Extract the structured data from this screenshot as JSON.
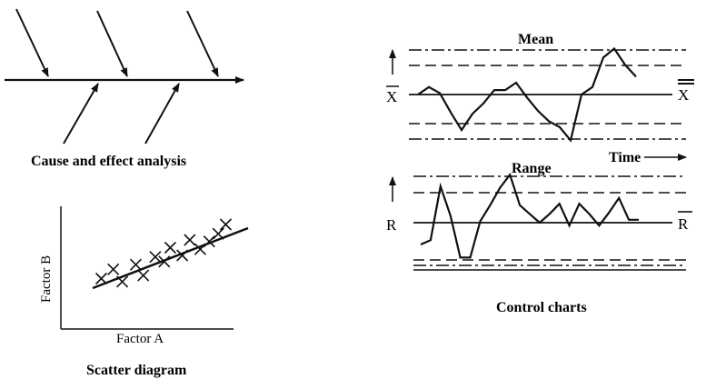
{
  "fishbone": {
    "caption": "Cause and effect analysis"
  },
  "scatter": {
    "xlabel": "Factor A",
    "ylabel": "Factor B",
    "caption": "Scatter diagram"
  },
  "control": {
    "caption": "Control charts",
    "mean_title": "Mean",
    "range_title": "Range",
    "time_label": "Time",
    "mean_symbol": "X",
    "mean_center_symbol": "X",
    "range_symbol": "R",
    "range_center_symbol": "R"
  },
  "chart_data": [
    {
      "type": "line",
      "title": "Mean",
      "series": [
        {
          "values": [
            0.0,
            0.5,
            0.1,
            -1.2,
            -2.4,
            -1.3,
            -0.6,
            0.3,
            0.3,
            0.8,
            -0.2,
            -1.1,
            -1.8,
            -2.2,
            -3.1,
            0.0,
            0.5,
            2.5,
            3.1,
            2.0,
            1.2
          ]
        }
      ],
      "xlabel": "Time"
    },
    {
      "type": "line",
      "title": "Range",
      "series": [
        {
          "values": [
            -1.5,
            -1.2,
            2.5,
            0.5,
            -2.4,
            -2.4,
            0.1,
            1.2,
            2.4,
            3.3,
            1.2,
            0.6,
            0.0,
            0.6,
            1.3,
            -0.2,
            1.3,
            0.6,
            -0.2,
            0.7,
            1.7,
            0.2,
            0.2
          ]
        }
      ],
      "xlabel": ""
    },
    {
      "type": "scatter",
      "title": "",
      "xlabel": "Factor A",
      "ylabel": "Factor B",
      "series": [
        {
          "x": [
            1.0,
            1.8,
            2.4,
            3.3,
            3.8,
            4.6,
            5.2,
            5.6,
            6.4,
            6.9,
            7.6,
            8.2,
            8.8,
            9.3
          ],
          "y": [
            1.5,
            2.1,
            1.3,
            2.4,
            1.7,
            2.9,
            2.6,
            3.5,
            3.0,
            4.0,
            3.4,
            3.9,
            4.4,
            5.0
          ]
        }
      ]
    }
  ]
}
